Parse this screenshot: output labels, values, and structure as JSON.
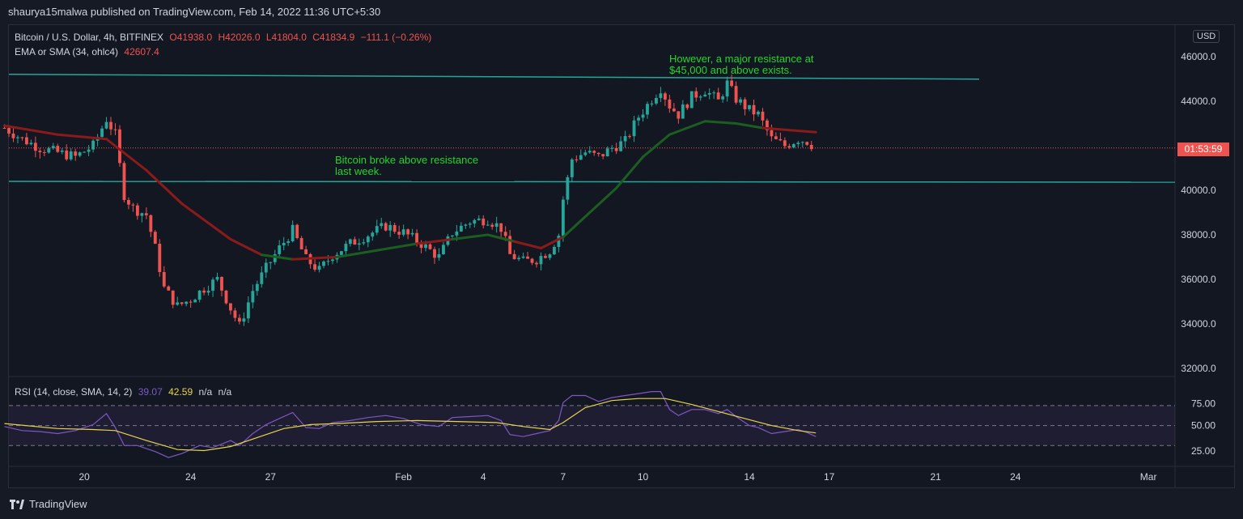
{
  "header": {
    "publish_line": "shaurya15malwa published on TradingView.com, Feb 14, 2022 11:36 UTC+5:30"
  },
  "legend": {
    "symbol": "Bitcoin / U.S. Dollar, 4h, BITFINEX",
    "open": "O41938.0",
    "high": "H42026.0",
    "low": "L41804.0",
    "close": "C41834.9",
    "change": "−111.1 (−0.26%)",
    "ma_name": "EMA or SMA (34, ohlc4)",
    "ma_value": "42607.4",
    "rsi_name": "RSI (14, close, SMA, 14, 2)",
    "rsi_value": "39.07",
    "rsi_ma_value": "42.59",
    "rsi_na1": "n/a",
    "rsi_na2": "n/a"
  },
  "price_axis": {
    "currency": "USD",
    "countdown": "01:53:59",
    "ticks": [
      "46000.0",
      "44000.0",
      "42000.0",
      "40000.0",
      "38000.0",
      "36000.0",
      "34000.0",
      "32000.0"
    ]
  },
  "rsi_axis": {
    "ticks": [
      "75.00",
      "50.00",
      "25.00"
    ]
  },
  "time_axis": {
    "ticks": [
      "20",
      "24",
      "27",
      "Feb",
      "4",
      "7",
      "10",
      "14",
      "17",
      "21",
      "24",
      "Mar"
    ]
  },
  "annotations": {
    "support_note_line1": "Bitcoin broke above resistance",
    "support_note_line2": "last week.",
    "resistance_note_line1": "However, a major resistance at",
    "resistance_note_line2": "$45,000 and above exists."
  },
  "footer": {
    "brand": "TradingView"
  },
  "colors": {
    "up": "#26a69a",
    "down": "#ef5350",
    "ma_up": "#1b5e20",
    "ma_down": "#8b1a1a",
    "trendline": "#26a69a",
    "annotation": "#22d62a",
    "rsi": "#7e57c2",
    "rsi_ma": "#e8d44d"
  },
  "chart_data": {
    "type": "candlestick",
    "symbol": "Bitcoin / U.S. Dollar",
    "interval": "4h",
    "ylim": [
      31600,
      47000
    ],
    "x_range": [
      "2022-01-17T04:00",
      "2022-03-02T00:00"
    ],
    "resistance_levels": [
      {
        "value": 45100
      },
      {
        "value": 40400
      }
    ],
    "close_path": [
      [
        "2022-01-17T00:00",
        42800
      ],
      [
        "2022-01-17T16:00",
        42300
      ],
      [
        "2022-01-18T08:00",
        41900
      ],
      [
        "2022-01-19T00:00",
        41700
      ],
      [
        "2022-01-19T16:00",
        41500
      ],
      [
        "2022-01-20T08:00",
        42000
      ],
      [
        "2022-01-20T20:00",
        43200
      ],
      [
        "2022-01-21T04:00",
        42500
      ],
      [
        "2022-01-21T08:00",
        41100
      ],
      [
        "2022-01-21T12:00",
        39800
      ],
      [
        "2022-01-21T20:00",
        39200
      ],
      [
        "2022-01-22T08:00",
        38900
      ],
      [
        "2022-01-22T16:00",
        37400
      ],
      [
        "2022-01-23T00:00",
        35600
      ],
      [
        "2022-01-23T12:00",
        34800
      ],
      [
        "2022-01-24T00:00",
        35100
      ],
      [
        "2022-01-24T12:00",
        35600
      ],
      [
        "2022-01-25T00:00",
        36000
      ],
      [
        "2022-01-25T12:00",
        34700
      ],
      [
        "2022-01-25T20:00",
        33900
      ],
      [
        "2022-01-26T08:00",
        35500
      ],
      [
        "2022-01-26T20:00",
        36500
      ],
      [
        "2022-01-27T08:00",
        37400
      ],
      [
        "2022-01-27T20:00",
        38200
      ],
      [
        "2022-01-28T08:00",
        36900
      ],
      [
        "2022-01-28T20:00",
        36400
      ],
      [
        "2022-01-29T08:00",
        37100
      ],
      [
        "2022-01-30T00:00",
        37600
      ],
      [
        "2022-01-30T16:00",
        38000
      ],
      [
        "2022-01-31T08:00",
        38400
      ],
      [
        "2022-02-01T00:00",
        38100
      ],
      [
        "2022-02-01T16:00",
        37600
      ],
      [
        "2022-02-02T08:00",
        37000
      ],
      [
        "2022-02-02T20:00",
        38100
      ],
      [
        "2022-02-03T12:00",
        38600
      ],
      [
        "2022-02-04T04:00",
        38700
      ],
      [
        "2022-02-04T16:00",
        38300
      ],
      [
        "2022-02-05T00:00",
        37100
      ],
      [
        "2022-02-05T12:00",
        36800
      ],
      [
        "2022-02-06T00:00",
        36900
      ],
      [
        "2022-02-06T12:00",
        37300
      ],
      [
        "2022-02-06T20:00",
        38000
      ],
      [
        "2022-02-07T00:00",
        39600
      ],
      [
        "2022-02-07T08:00",
        41400
      ],
      [
        "2022-02-07T20:00",
        41700
      ],
      [
        "2022-02-08T08:00",
        41500
      ],
      [
        "2022-02-08T20:00",
        41900
      ],
      [
        "2022-02-09T08:00",
        42200
      ],
      [
        "2022-02-09T20:00",
        43300
      ],
      [
        "2022-02-10T08:00",
        44100
      ],
      [
        "2022-02-10T16:00",
        44600
      ],
      [
        "2022-02-11T00:00",
        43800
      ],
      [
        "2022-02-11T08:00",
        43400
      ],
      [
        "2022-02-11T20:00",
        44200
      ],
      [
        "2022-02-12T08:00",
        44500
      ],
      [
        "2022-02-12T20:00",
        44000
      ],
      [
        "2022-02-13T04:00",
        44800
      ],
      [
        "2022-02-13T12:00",
        44100
      ],
      [
        "2022-02-14T00:00",
        43600
      ],
      [
        "2022-02-14T08:00",
        43400
      ],
      [
        "2022-02-14T20:00",
        42300
      ],
      [
        "2022-02-15T08:00",
        42000
      ],
      [
        "2022-02-15T20:00",
        42300
      ],
      [
        "2022-02-16T04:00",
        42200
      ],
      [
        "2022-02-16T12:00",
        41900
      ]
    ],
    "ma_path": [
      [
        "2022-01-17T00:00",
        42900
      ],
      [
        "2022-01-19T00:00",
        42500
      ],
      [
        "2022-01-20T20:00",
        42300
      ],
      [
        "2022-01-22T08:00",
        40900
      ],
      [
        "2022-01-23T16:00",
        39400
      ],
      [
        "2022-01-25T12:00",
        37800
      ],
      [
        "2022-01-26T16:00",
        37100
      ],
      [
        "2022-01-27T20:00",
        36900
      ],
      [
        "2022-01-29T12:00",
        37000
      ],
      [
        "2022-01-31T00:00",
        37300
      ],
      [
        "2022-02-01T12:00",
        37600
      ],
      [
        "2022-02-02T20:00",
        37800
      ],
      [
        "2022-02-04T04:00",
        38000
      ],
      [
        "2022-02-05T04:00",
        37700
      ],
      [
        "2022-02-06T04:00",
        37400
      ],
      [
        "2022-02-07T00:00",
        37900
      ],
      [
        "2022-02-08T00:00",
        39000
      ],
      [
        "2022-02-09T00:00",
        40100
      ],
      [
        "2022-02-10T00:00",
        41500
      ],
      [
        "2022-02-11T00:00",
        42500
      ],
      [
        "2022-02-12T08:00",
        43100
      ],
      [
        "2022-02-13T12:00",
        43000
      ],
      [
        "2022-02-14T12:00",
        42800
      ],
      [
        "2022-02-15T12:00",
        42700
      ],
      [
        "2022-02-16T12:00",
        42607
      ]
    ],
    "rsi": {
      "ylim": [
        10,
        95
      ],
      "bands": [
        70,
        50,
        30
      ],
      "rsi_path": [
        [
          "2022-01-17T00:00",
          49
        ],
        [
          "2022-01-17T16:00",
          45
        ],
        [
          "2022-01-18T08:00",
          44
        ],
        [
          "2022-01-19T00:00",
          42
        ],
        [
          "2022-01-19T16:00",
          45
        ],
        [
          "2022-01-20T08:00",
          51
        ],
        [
          "2022-01-20T20:00",
          62
        ],
        [
          "2022-01-21T04:00",
          48
        ],
        [
          "2022-01-21T12:00",
          30
        ],
        [
          "2022-01-22T00:00",
          30
        ],
        [
          "2022-01-22T16:00",
          24
        ],
        [
          "2022-01-23T04:00",
          18
        ],
        [
          "2022-01-23T16:00",
          22
        ],
        [
          "2022-01-24T08:00",
          30
        ],
        [
          "2022-01-24T20:00",
          28
        ],
        [
          "2022-01-25T12:00",
          35
        ],
        [
          "2022-01-25T20:00",
          30
        ],
        [
          "2022-01-26T08:00",
          42
        ],
        [
          "2022-01-26T20:00",
          51
        ],
        [
          "2022-01-27T08:00",
          57
        ],
        [
          "2022-01-27T20:00",
          63
        ],
        [
          "2022-01-28T08:00",
          48
        ],
        [
          "2022-01-28T20:00",
          47
        ],
        [
          "2022-01-29T08:00",
          53
        ],
        [
          "2022-01-30T00:00",
          55
        ],
        [
          "2022-01-30T16:00",
          58
        ],
        [
          "2022-01-31T08:00",
          60
        ],
        [
          "2022-02-01T00:00",
          57
        ],
        [
          "2022-02-01T16:00",
          51
        ],
        [
          "2022-02-02T08:00",
          49
        ],
        [
          "2022-02-02T20:00",
          58
        ],
        [
          "2022-02-03T12:00",
          59
        ],
        [
          "2022-02-04T04:00",
          60
        ],
        [
          "2022-02-04T16:00",
          55
        ],
        [
          "2022-02-05T00:00",
          41
        ],
        [
          "2022-02-05T12:00",
          39
        ],
        [
          "2022-02-06T00:00",
          42
        ],
        [
          "2022-02-06T12:00",
          45
        ],
        [
          "2022-02-06T20:00",
          55
        ],
        [
          "2022-02-07T00:00",
          73
        ],
        [
          "2022-02-07T08:00",
          80
        ],
        [
          "2022-02-07T20:00",
          80
        ],
        [
          "2022-02-08T08:00",
          74
        ],
        [
          "2022-02-08T20:00",
          78
        ],
        [
          "2022-02-09T08:00",
          80
        ],
        [
          "2022-02-09T20:00",
          82
        ],
        [
          "2022-02-10T08:00",
          84
        ],
        [
          "2022-02-10T16:00",
          84
        ],
        [
          "2022-02-11T00:00",
          66
        ],
        [
          "2022-02-11T08:00",
          60
        ],
        [
          "2022-02-11T20:00",
          66
        ],
        [
          "2022-02-12T08:00",
          66
        ],
        [
          "2022-02-12T20:00",
          62
        ],
        [
          "2022-02-13T04:00",
          66
        ],
        [
          "2022-02-13T12:00",
          59
        ],
        [
          "2022-02-14T00:00",
          50
        ],
        [
          "2022-02-14T08:00",
          48
        ],
        [
          "2022-02-14T20:00",
          42
        ],
        [
          "2022-02-15T08:00",
          44
        ],
        [
          "2022-02-15T20:00",
          46
        ],
        [
          "2022-02-16T04:00",
          43
        ],
        [
          "2022-02-16T12:00",
          39
        ]
      ],
      "ma_path": [
        [
          "2022-01-17T00:00",
          52
        ],
        [
          "2022-01-19T00:00",
          47
        ],
        [
          "2022-01-20T08:00",
          46
        ],
        [
          "2022-01-21T04:00",
          45
        ],
        [
          "2022-01-22T08:00",
          35
        ],
        [
          "2022-01-23T12:00",
          26
        ],
        [
          "2022-01-24T12:00",
          25
        ],
        [
          "2022-01-25T12:00",
          29
        ],
        [
          "2022-01-26T12:00",
          38
        ],
        [
          "2022-01-27T12:00",
          47
        ],
        [
          "2022-01-28T12:00",
          51
        ],
        [
          "2022-01-29T12:00",
          52
        ],
        [
          "2022-01-31T00:00",
          54
        ],
        [
          "2022-02-01T12:00",
          55
        ],
        [
          "2022-02-03T00:00",
          54
        ],
        [
          "2022-02-04T12:00",
          53
        ],
        [
          "2022-02-05T12:00",
          49
        ],
        [
          "2022-02-06T12:00",
          46
        ],
        [
          "2022-02-07T00:00",
          53
        ],
        [
          "2022-02-07T20:00",
          68
        ],
        [
          "2022-02-08T20:00",
          75
        ],
        [
          "2022-02-09T20:00",
          77
        ],
        [
          "2022-02-10T20:00",
          77
        ],
        [
          "2022-02-11T20:00",
          71
        ],
        [
          "2022-02-12T20:00",
          64
        ],
        [
          "2022-02-13T20:00",
          57
        ],
        [
          "2022-02-14T20:00",
          50
        ],
        [
          "2022-02-15T20:00",
          45
        ],
        [
          "2022-02-16T12:00",
          42.59
        ]
      ]
    }
  }
}
